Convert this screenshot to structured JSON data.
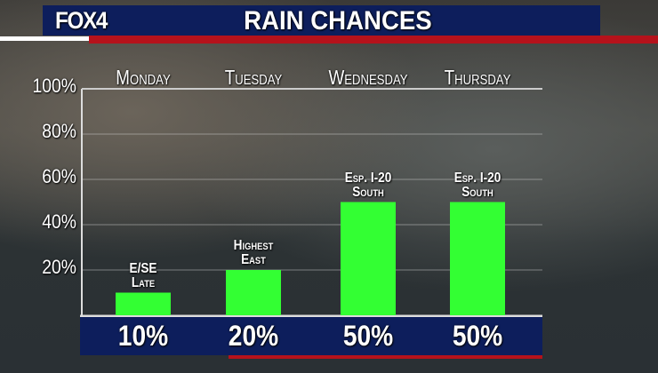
{
  "header": {
    "logo": "FOX4",
    "title": "RAIN CHANCES"
  },
  "colors": {
    "header_bg": "#0d1e5c",
    "accent_red": "#b5121b",
    "bar": "#33ff33"
  },
  "chart_data": {
    "type": "bar",
    "title": "RAIN CHANCES",
    "categories": [
      "Monday",
      "Tuesday",
      "Wednesday",
      "Thursday"
    ],
    "values": [
      10,
      20,
      50,
      50
    ],
    "value_labels": [
      "10%",
      "20%",
      "50%",
      "50%"
    ],
    "annotations": [
      [
        "E/SE",
        "Late"
      ],
      [
        "Highest",
        "East"
      ],
      [
        "Esp. I-20",
        "South"
      ],
      [
        "Esp. I-20",
        "South"
      ]
    ],
    "yticks": [
      "20%",
      "40%",
      "60%",
      "80%",
      "100%"
    ],
    "ylim": [
      0,
      100
    ],
    "grid": true
  }
}
